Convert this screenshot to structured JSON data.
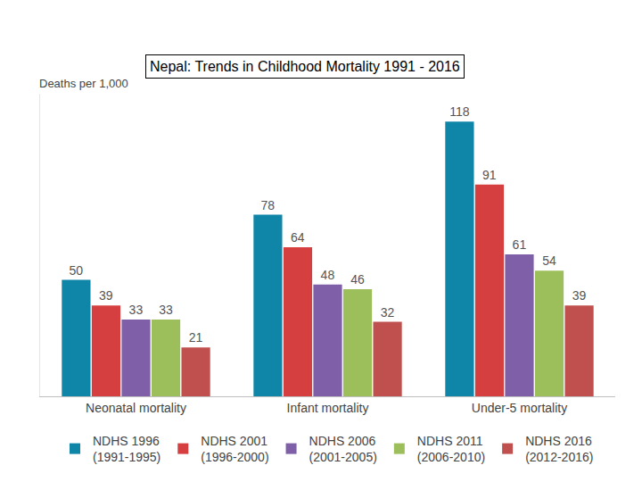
{
  "chart_data": {
    "type": "bar",
    "title": "Nepal: Trends in Childhood Mortality 1991 - 2016",
    "ylabel": "Deaths per 1,000",
    "categories": [
      "Neonatal mortality",
      "Infant mortality",
      "Under-5 mortality"
    ],
    "series": [
      {
        "name": "NDHS 1996 (1991-1995)",
        "color": "#0f86a8",
        "values": [
          50,
          78,
          118
        ]
      },
      {
        "name": "NDHS 2001 (1996-2000)",
        "color": "#d63f3f",
        "values": [
          39,
          64,
          91
        ]
      },
      {
        "name": "NDHS 2006 (2001-2005)",
        "color": "#7e5fa8",
        "values": [
          33,
          48,
          61
        ]
      },
      {
        "name": "NDHS 2011 (2006-2010)",
        "color": "#9dbf5b",
        "values": [
          33,
          46,
          54
        ]
      },
      {
        "name": "NDHS 2016 (2012-2016)",
        "color": "#c0504d",
        "values": [
          21,
          32,
          39
        ]
      }
    ],
    "ylim": [
      0,
      130
    ],
    "tick_labels": "x",
    "grid": false,
    "data_labels": true,
    "legend": "bottom"
  }
}
